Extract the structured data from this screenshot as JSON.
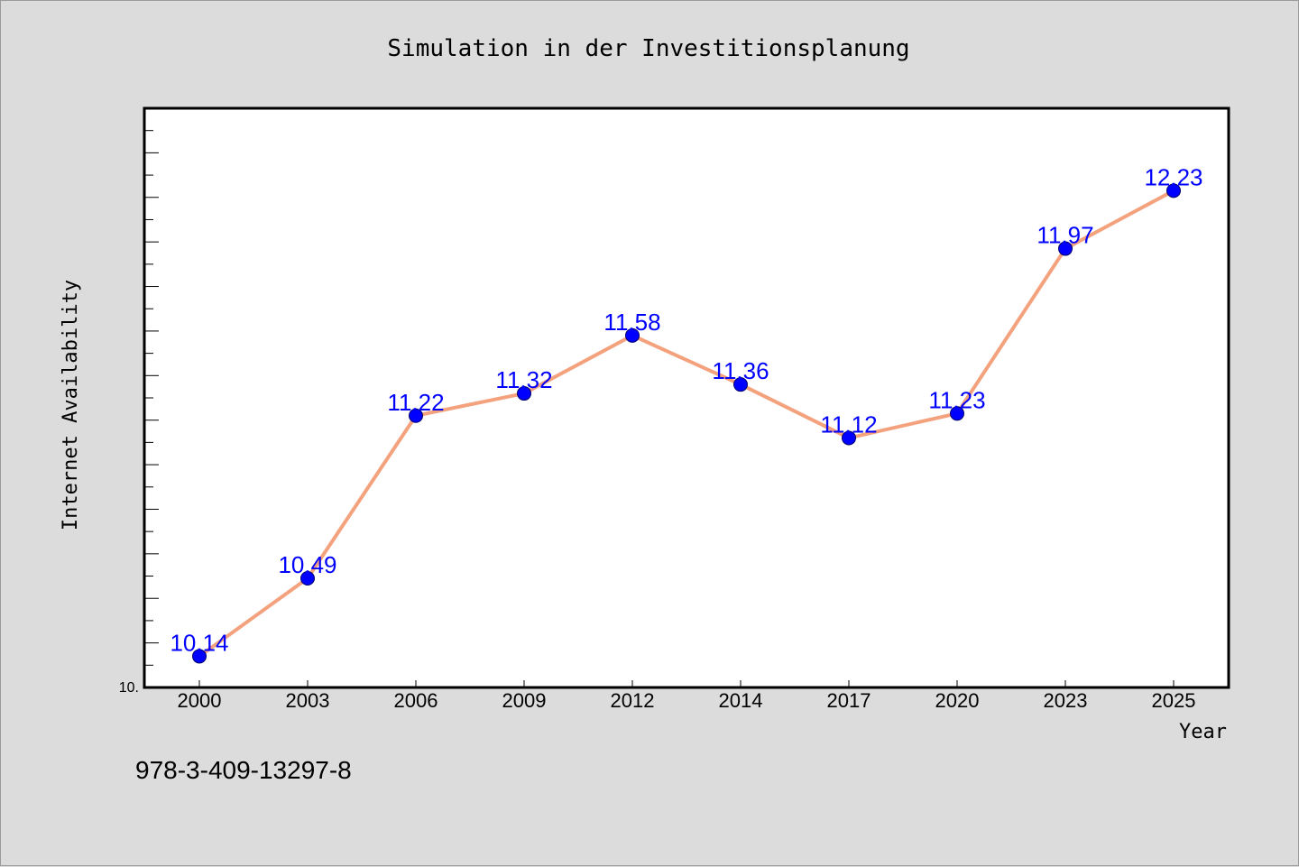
{
  "chart_data": {
    "type": "line",
    "title": "Simulation in der Investitionsplanung",
    "xlabel": "Year",
    "ylabel": "Internet Availability",
    "x": [
      "2000",
      "2003",
      "2006",
      "2009",
      "2012",
      "2014",
      "2017",
      "2020",
      "2023",
      "2025"
    ],
    "series": [
      {
        "values": [
          10.14,
          10.49,
          11.22,
          11.32,
          11.58,
          11.36,
          11.12,
          11.23,
          11.97,
          12.23
        ],
        "labels": [
          "10.14",
          "10.49",
          "11.22",
          "11.32",
          "11.58",
          "11.36",
          "11.12",
          "11.23",
          "11.97",
          "12.23"
        ]
      }
    ],
    "y_min_label": "10.",
    "ylim": [
      10.0,
      12.6
    ],
    "grid": false,
    "line_color": "#f4a27e",
    "marker_color": "#0000ff",
    "label_color": "#0000ff"
  },
  "footer": {
    "isbn": "978-3-409-13297-8"
  }
}
